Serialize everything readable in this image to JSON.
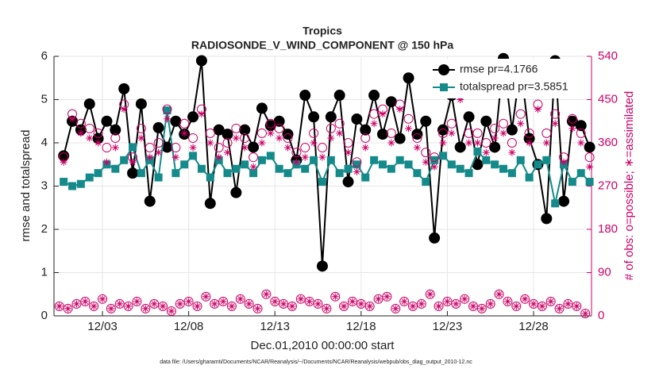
{
  "chart_data": {
    "type": "line",
    "title": "Tropics",
    "subtitle": "RADIOSONDE_V_WIND_COMPONENT @ 150 hPa",
    "ylabel": "rmse and totalspread",
    "y2label": "# of obs: o=possible; ∗=assimilated",
    "xlabel": "Dec.01,2010 00:00:00 start",
    "footnote": "data file: /Users/gharamti/Documents/NCAR/Reanalysis/~/Documents/NCAR/Reanalysis/webpub/obs_diag_output_2010-12.nc",
    "grid": true,
    "legend": "upper right",
    "xlim": [
      0.19,
      31.36
    ],
    "xticks": [
      {
        "value": 3,
        "label": "12/03"
      },
      {
        "value": 8,
        "label": "12/08"
      },
      {
        "value": 13,
        "label": "12/13"
      },
      {
        "value": 18,
        "label": "12/18"
      },
      {
        "value": 23,
        "label": "12/23"
      },
      {
        "value": 28,
        "label": "12/28"
      }
    ],
    "ylim": [
      0,
      6
    ],
    "yticks": [
      0,
      1,
      2,
      3,
      4,
      5,
      6
    ],
    "y2lim": [
      0,
      540
    ],
    "y2ticks": [
      0,
      90,
      180,
      270,
      360,
      450,
      540
    ],
    "y2color": "#cc0066",
    "x": [
      0.75,
      1.25,
      1.75,
      2.25,
      2.75,
      3.25,
      3.75,
      4.25,
      4.75,
      5.25,
      5.75,
      6.25,
      6.75,
      7.25,
      7.75,
      8.25,
      8.75,
      9.25,
      9.75,
      10.25,
      10.75,
      11.25,
      11.75,
      12.25,
      12.75,
      13.25,
      13.75,
      14.25,
      14.75,
      15.25,
      15.75,
      16.25,
      16.75,
      17.25,
      17.75,
      18.25,
      18.75,
      19.25,
      19.75,
      20.25,
      20.75,
      21.25,
      21.75,
      22.25,
      22.75,
      23.25,
      23.75,
      24.25,
      24.75,
      25.25,
      25.75,
      26.25,
      26.75,
      27.25,
      27.75,
      28.25,
      28.75,
      29.25,
      29.75,
      30.25,
      30.75,
      31.25
    ],
    "series": [
      {
        "name": "rmse pr=4.1766",
        "color": "#000000",
        "marker": "circle",
        "line": true,
        "values": [
          3.7,
          4.5,
          4.3,
          4.9,
          4.1,
          4.5,
          4.3,
          5.25,
          3.3,
          4.9,
          2.65,
          4.35,
          3.9,
          4.5,
          4.2,
          4.6,
          5.9,
          2.6,
          4.3,
          4.2,
          2.85,
          4.3,
          3.9,
          4.8,
          4.4,
          4.5,
          4.2,
          3.6,
          5.1,
          4.6,
          1.15,
          4.6,
          5.1,
          3.1,
          4.55,
          4.3,
          5.1,
          4.2,
          4.95,
          4.1,
          5.5,
          4.2,
          4.5,
          1.8,
          4.3,
          5.1,
          3.9,
          4.6,
          3.5,
          4.5,
          3.9,
          5.95,
          4.3,
          5.8,
          4.1,
          3.5,
          2.25,
          5.9,
          2.65,
          4.5,
          4.4,
          3.9
        ]
      },
      {
        "name": "totalspread pr=3.5851",
        "color": "#158a8a",
        "marker": "square",
        "line": true,
        "values": [
          3.1,
          3.0,
          3.05,
          3.2,
          3.3,
          3.5,
          3.4,
          3.6,
          3.9,
          3.3,
          3.6,
          3.2,
          4.75,
          3.3,
          3.5,
          3.7,
          3.4,
          3.2,
          3.6,
          3.3,
          3.4,
          3.5,
          3.3,
          3.6,
          3.7,
          3.4,
          3.3,
          3.5,
          3.4,
          3.6,
          3.1,
          3.6,
          3.3,
          3.4,
          3.5,
          3.2,
          3.6,
          3.5,
          3.4,
          3.6,
          3.5,
          3.3,
          3.1,
          3.6,
          3.7,
          3.5,
          3.4,
          3.3,
          3.8,
          3.6,
          3.5,
          3.4,
          3.3,
          3.6,
          3.2,
          3.5,
          3.6,
          2.6,
          3.5,
          3.1,
          3.3,
          3.1
        ]
      },
      {
        "color": "#cc0066",
        "marker": "open-circle",
        "axis": "y2",
        "values": [
          330,
          420,
          400,
          390,
          380,
          350,
          370,
          440,
          330,
          390,
          350,
          360,
          430,
          350,
          400,
          370,
          430,
          380,
          350,
          360,
          390,
          370,
          330,
          380,
          400,
          390,
          370,
          340,
          350,
          380,
          350,
          390,
          400,
          360,
          320,
          370,
          420,
          430,
          380,
          440,
          410,
          370,
          340,
          330,
          380,
          400,
          460,
          380,
          380,
          360,
          390,
          400,
          360,
          420,
          380,
          440,
          380,
          420,
          330,
          410,
          380,
          330
        ]
      },
      {
        "color": "#cc0066",
        "marker": "asterisk",
        "axis": "y2",
        "values": [
          320,
          410,
          380,
          370,
          360,
          320,
          350,
          430,
          320,
          370,
          330,
          340,
          410,
          330,
          380,
          350,
          420,
          360,
          330,
          340,
          370,
          350,
          310,
          360,
          380,
          370,
          350,
          320,
          330,
          360,
          330,
          370,
          380,
          340,
          300,
          350,
          400,
          420,
          360,
          430,
          390,
          350,
          320,
          310,
          360,
          380,
          450,
          360,
          360,
          340,
          370,
          380,
          340,
          400,
          360,
          430,
          360,
          400,
          320,
          390,
          360,
          310
        ]
      },
      {
        "color": "#cc0066",
        "marker": "open-circle",
        "axis": "y2",
        "x": [
          0.5,
          1,
          1.5,
          2,
          2.5,
          3,
          3.5,
          4,
          4.5,
          5,
          5.5,
          6,
          6.5,
          7,
          7.5,
          8,
          8.5,
          9,
          9.5,
          10,
          10.5,
          11,
          11.5,
          12,
          12.5,
          13,
          13.5,
          14,
          14.5,
          15,
          15.5,
          16,
          16.5,
          17,
          17.5,
          18,
          18.5,
          19,
          19.5,
          20,
          20.5,
          21,
          21.5,
          22,
          22.5,
          23,
          23.5,
          24,
          24.5,
          25,
          25.5,
          26,
          26.5,
          27,
          27.5,
          28,
          28.5,
          29,
          29.5,
          30,
          30.5,
          31
        ],
        "values": [
          20,
          15,
          25,
          30,
          20,
          35,
          15,
          25,
          20,
          30,
          15,
          25,
          20,
          10,
          25,
          30,
          20,
          40,
          25,
          30,
          20,
          35,
          25,
          15,
          45,
          30,
          25,
          20,
          35,
          30,
          25,
          15,
          40,
          20,
          30,
          25,
          20,
          35,
          40,
          15,
          30,
          20,
          25,
          45,
          20,
          30,
          25,
          35,
          20,
          15,
          25,
          45,
          30,
          20,
          35,
          25,
          20,
          30,
          15,
          25,
          20,
          5
        ]
      },
      {
        "color": "#cc0066",
        "marker": "asterisk",
        "axis": "y2",
        "x": [
          0.5,
          1,
          1.5,
          2,
          2.5,
          3,
          3.5,
          4,
          4.5,
          5,
          5.5,
          6,
          6.5,
          7,
          7.5,
          8,
          8.5,
          9,
          9.5,
          10,
          10.5,
          11,
          11.5,
          12,
          12.5,
          13,
          13.5,
          14,
          14.5,
          15,
          15.5,
          16,
          16.5,
          17,
          17.5,
          18,
          18.5,
          19,
          19.5,
          20,
          20.5,
          21,
          21.5,
          22,
          22.5,
          23,
          23.5,
          24,
          24.5,
          25,
          25.5,
          26,
          26.5,
          27,
          27.5,
          28,
          28.5,
          29,
          29.5,
          30,
          30.5,
          31
        ],
        "values": [
          20,
          15,
          25,
          30,
          20,
          35,
          15,
          25,
          20,
          30,
          15,
          25,
          20,
          10,
          25,
          30,
          20,
          40,
          25,
          30,
          20,
          35,
          25,
          15,
          45,
          30,
          25,
          20,
          35,
          30,
          25,
          15,
          40,
          20,
          30,
          25,
          20,
          35,
          40,
          15,
          30,
          20,
          25,
          45,
          20,
          30,
          25,
          35,
          20,
          15,
          25,
          45,
          30,
          20,
          35,
          25,
          20,
          30,
          15,
          25,
          20,
          5
        ]
      }
    ]
  }
}
